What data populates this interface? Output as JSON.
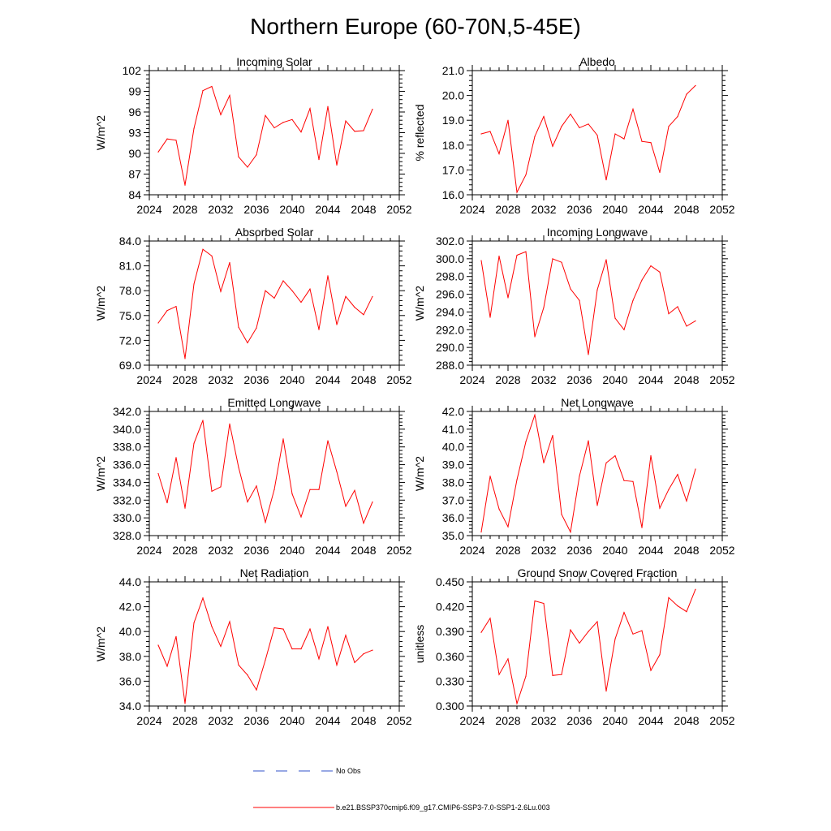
{
  "figure": {
    "title": "Northern Europe (60-70N,5-45E)",
    "legend": {
      "obs_label": "No Obs",
      "obs_color": "#3050c8",
      "model_label": "b.e21.BSSP370cmip6.f09_g17.CMIP6-SSP3-7.0-SSP1-2.6Lu.003",
      "model_color": "#ff0000"
    }
  },
  "chart_data": [
    {
      "type": "line",
      "title": "Incoming Solar",
      "ylabel": "W/m^2",
      "xlim": [
        2024,
        2052
      ],
      "x_ticks": [
        "2024",
        "2028",
        "2032",
        "2036",
        "2040",
        "2044",
        "2048",
        "2052"
      ],
      "ylim": [
        84,
        102
      ],
      "y_ticks": [
        "84",
        "87",
        "90",
        "93",
        "96",
        "99",
        "102"
      ],
      "grid": false,
      "x": [
        2025,
        2026,
        2027,
        2028,
        2029,
        2030,
        2031,
        2032,
        2033,
        2034,
        2035,
        2036,
        2037,
        2038,
        2039,
        2040,
        2041,
        2042,
        2043,
        2044,
        2045,
        2046,
        2047,
        2048,
        2049
      ],
      "series": [
        {
          "values": [
            90.2,
            92.1,
            91.9,
            85.4,
            93.6,
            99.1,
            99.7,
            95.6,
            98.4,
            89.5,
            88.0,
            89.8,
            95.5,
            93.7,
            94.5,
            94.9,
            93.1,
            96.5,
            89.1,
            96.8,
            88.3,
            94.7,
            93.2,
            93.3,
            96.4
          ],
          "color": "#ff0000"
        }
      ]
    },
    {
      "type": "line",
      "title": "Albedo",
      "ylabel": "% reflected",
      "xlim": [
        2024,
        2052
      ],
      "x_ticks": [
        "2024",
        "2028",
        "2032",
        "2036",
        "2040",
        "2044",
        "2048",
        "2052"
      ],
      "ylim": [
        16.0,
        21.0
      ],
      "y_ticks": [
        "16.0",
        "17.0",
        "18.0",
        "19.0",
        "20.0",
        "21.0"
      ],
      "grid": false,
      "x": [
        2025,
        2026,
        2027,
        2028,
        2029,
        2030,
        2031,
        2032,
        2033,
        2034,
        2035,
        2036,
        2037,
        2038,
        2039,
        2040,
        2041,
        2042,
        2043,
        2044,
        2045,
        2046,
        2047,
        2048,
        2049
      ],
      "series": [
        {
          "values": [
            18.45,
            18.55,
            17.65,
            19.0,
            16.1,
            16.8,
            18.35,
            19.15,
            17.95,
            18.75,
            19.25,
            18.7,
            18.85,
            18.4,
            16.6,
            18.45,
            18.25,
            19.45,
            18.15,
            18.1,
            16.9,
            18.75,
            19.15,
            20.05,
            20.4
          ],
          "color": "#ff0000"
        }
      ]
    },
    {
      "type": "line",
      "title": "Absorbed Solar",
      "ylabel": "W/m^2",
      "xlim": [
        2024,
        2052
      ],
      "x_ticks": [
        "2024",
        "2028",
        "2032",
        "2036",
        "2040",
        "2044",
        "2048",
        "2052"
      ],
      "ylim": [
        69.0,
        84.0
      ],
      "y_ticks": [
        "69.0",
        "72.0",
        "75.0",
        "78.0",
        "81.0",
        "84.0"
      ],
      "grid": false,
      "x": [
        2025,
        2026,
        2027,
        2028,
        2029,
        2030,
        2031,
        2032,
        2033,
        2034,
        2035,
        2036,
        2037,
        2038,
        2039,
        2040,
        2041,
        2042,
        2043,
        2044,
        2045,
        2046,
        2047,
        2048,
        2049
      ],
      "series": [
        {
          "values": [
            74.1,
            75.6,
            76.1,
            69.8,
            78.8,
            83.0,
            82.2,
            77.9,
            81.4,
            73.6,
            71.7,
            73.5,
            78.0,
            77.1,
            79.2,
            78.0,
            76.6,
            78.2,
            73.3,
            79.8,
            73.9,
            77.3,
            76.0,
            75.1,
            77.3
          ],
          "color": "#ff0000"
        }
      ]
    },
    {
      "type": "line",
      "title": "Incoming Longwave",
      "ylabel": "W/m^2",
      "xlim": [
        2024,
        2052
      ],
      "x_ticks": [
        "2024",
        "2028",
        "2032",
        "2036",
        "2040",
        "2044",
        "2048",
        "2052"
      ],
      "ylim": [
        288.0,
        302.0
      ],
      "y_ticks": [
        "288.0",
        "290.0",
        "292.0",
        "294.0",
        "296.0",
        "298.0",
        "300.0",
        "302.0"
      ],
      "grid": false,
      "x": [
        2025,
        2026,
        2027,
        2028,
        2029,
        2030,
        2031,
        2032,
        2033,
        2034,
        2035,
        2036,
        2037,
        2038,
        2039,
        2040,
        2041,
        2042,
        2043,
        2044,
        2045,
        2046,
        2047,
        2048,
        2049
      ],
      "series": [
        {
          "values": [
            299.8,
            293.4,
            300.3,
            295.6,
            300.4,
            300.8,
            291.2,
            294.5,
            300.0,
            299.6,
            296.6,
            295.3,
            289.2,
            296.5,
            299.9,
            293.3,
            292.0,
            295.3,
            297.6,
            299.2,
            298.5,
            293.8,
            294.6,
            292.4,
            293.0
          ],
          "color": "#ff0000"
        }
      ]
    },
    {
      "type": "line",
      "title": "Emitted Longwave",
      "ylabel": "W/m^2",
      "xlim": [
        2024,
        2052
      ],
      "x_ticks": [
        "2024",
        "2028",
        "2032",
        "2036",
        "2040",
        "2044",
        "2048",
        "2052"
      ],
      "ylim": [
        328.0,
        342.0
      ],
      "y_ticks": [
        "328.0",
        "330.0",
        "332.0",
        "334.0",
        "336.0",
        "338.0",
        "340.0",
        "342.0"
      ],
      "grid": false,
      "x": [
        2025,
        2026,
        2027,
        2028,
        2029,
        2030,
        2031,
        2032,
        2033,
        2034,
        2035,
        2036,
        2037,
        2038,
        2039,
        2040,
        2041,
        2042,
        2043,
        2044,
        2045,
        2046,
        2047,
        2048,
        2049
      ],
      "series": [
        {
          "values": [
            335.0,
            331.7,
            336.8,
            331.1,
            338.4,
            341.0,
            333.0,
            333.5,
            340.6,
            335.7,
            331.8,
            333.6,
            329.5,
            333.2,
            338.9,
            332.7,
            330.1,
            333.2,
            333.2,
            338.7,
            335.2,
            331.3,
            333.1,
            329.4,
            331.8
          ],
          "color": "#ff0000"
        }
      ]
    },
    {
      "type": "line",
      "title": "Net Longwave",
      "ylabel": "W/m^2",
      "xlim": [
        2024,
        2052
      ],
      "x_ticks": [
        "2024",
        "2028",
        "2032",
        "2036",
        "2040",
        "2044",
        "2048",
        "2052"
      ],
      "ylim": [
        35.0,
        42.0
      ],
      "y_ticks": [
        "35.0",
        "36.0",
        "37.0",
        "38.0",
        "39.0",
        "40.0",
        "41.0",
        "42.0"
      ],
      "grid": false,
      "x": [
        2025,
        2026,
        2027,
        2028,
        2029,
        2030,
        2031,
        2032,
        2033,
        2034,
        2035,
        2036,
        2037,
        2038,
        2039,
        2040,
        2041,
        2042,
        2043,
        2044,
        2045,
        2046,
        2047,
        2048,
        2049
      ],
      "series": [
        {
          "values": [
            35.2,
            38.35,
            36.5,
            35.5,
            38.15,
            40.3,
            41.8,
            39.1,
            40.65,
            36.2,
            35.2,
            38.35,
            40.35,
            36.7,
            39.1,
            39.5,
            38.1,
            38.05,
            35.45,
            39.5,
            36.55,
            37.6,
            38.45,
            36.95,
            38.75
          ],
          "color": "#ff0000"
        }
      ]
    },
    {
      "type": "line",
      "title": "Net Radiation",
      "ylabel": "W/m^2",
      "xlim": [
        2024,
        2052
      ],
      "x_ticks": [
        "2024",
        "2028",
        "2032",
        "2036",
        "2040",
        "2044",
        "2048",
        "2052"
      ],
      "ylim": [
        34.0,
        44.0
      ],
      "y_ticks": [
        "34.0",
        "36.0",
        "38.0",
        "40.0",
        "42.0",
        "44.0"
      ],
      "grid": false,
      "x": [
        2025,
        2026,
        2027,
        2028,
        2029,
        2030,
        2031,
        2032,
        2033,
        2034,
        2035,
        2036,
        2037,
        2038,
        2039,
        2040,
        2041,
        2042,
        2043,
        2044,
        2045,
        2046,
        2047,
        2048,
        2049
      ],
      "series": [
        {
          "values": [
            38.9,
            37.2,
            39.6,
            34.2,
            40.7,
            42.7,
            40.4,
            38.8,
            40.8,
            37.3,
            36.5,
            35.3,
            37.7,
            40.3,
            40.2,
            38.6,
            38.6,
            40.2,
            37.8,
            40.4,
            37.3,
            39.7,
            37.5,
            38.2,
            38.5
          ],
          "color": "#ff0000"
        }
      ]
    },
    {
      "type": "line",
      "title": "Ground Snow Covered Fraction",
      "ylabel": "unitless",
      "xlim": [
        2024,
        2052
      ],
      "x_ticks": [
        "2024",
        "2028",
        "2032",
        "2036",
        "2040",
        "2044",
        "2048",
        "2052"
      ],
      "ylim": [
        0.3,
        0.45
      ],
      "y_ticks": [
        "0.300",
        "0.330",
        "0.360",
        "0.390",
        "0.420",
        "0.450"
      ],
      "grid": false,
      "x": [
        2025,
        2026,
        2027,
        2028,
        2029,
        2030,
        2031,
        2032,
        2033,
        2034,
        2035,
        2036,
        2037,
        2038,
        2039,
        2040,
        2041,
        2042,
        2043,
        2044,
        2045,
        2046,
        2047,
        2048,
        2049
      ],
      "series": [
        {
          "values": [
            0.389,
            0.406,
            0.338,
            0.357,
            0.303,
            0.336,
            0.427,
            0.424,
            0.337,
            0.338,
            0.392,
            0.376,
            0.39,
            0.402,
            0.318,
            0.381,
            0.413,
            0.387,
            0.391,
            0.343,
            0.362,
            0.431,
            0.421,
            0.414,
            0.441
          ],
          "color": "#ff0000"
        }
      ]
    }
  ]
}
